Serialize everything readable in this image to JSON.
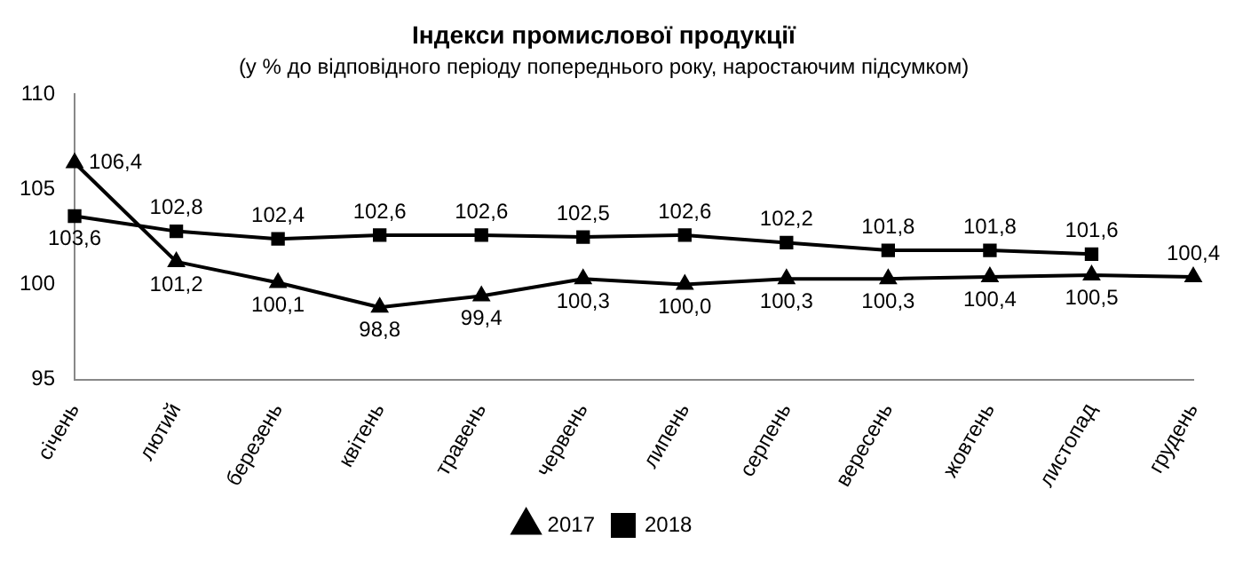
{
  "chart_data": {
    "type": "line",
    "title": "Індекси промислової продукції",
    "subtitle": "(у % до відповідного періоду попереднього року, наростаючим підсумком)",
    "categories": [
      "січень",
      "лютий",
      "березень",
      "квітень",
      "травень",
      "червень",
      "липень",
      "серпень",
      "вересень",
      "жовтень",
      "листопад",
      "грудень"
    ],
    "series": [
      {
        "name": "2017",
        "color": "#000000",
        "marker": "triangle",
        "values": [
          106.4,
          101.2,
          100.1,
          98.8,
          99.4,
          100.3,
          100.0,
          100.3,
          100.3,
          100.4,
          100.5,
          100.4
        ],
        "value_labels": [
          "106,4",
          "101,2",
          "100,1",
          "98,8",
          "99,4",
          "100,3",
          "100,0",
          "100,3",
          "100,3",
          "100,4",
          "100,5",
          "100,4"
        ]
      },
      {
        "name": "2018",
        "color": "#000000",
        "marker": "square",
        "values": [
          103.6,
          102.8,
          102.4,
          102.6,
          102.6,
          102.5,
          102.6,
          102.2,
          101.8,
          101.8,
          101.6,
          null
        ],
        "value_labels": [
          "103,6",
          "102,8",
          "102,4",
          "102,6",
          "102,6",
          "102,5",
          "102,6",
          "102,2",
          "101,8",
          "101,8",
          "101,6",
          null
        ]
      }
    ],
    "ylim": [
      95,
      110
    ],
    "yticks": [
      95,
      100,
      105,
      110
    ],
    "grid": false,
    "legend": "bottom",
    "line_style": "solid"
  }
}
